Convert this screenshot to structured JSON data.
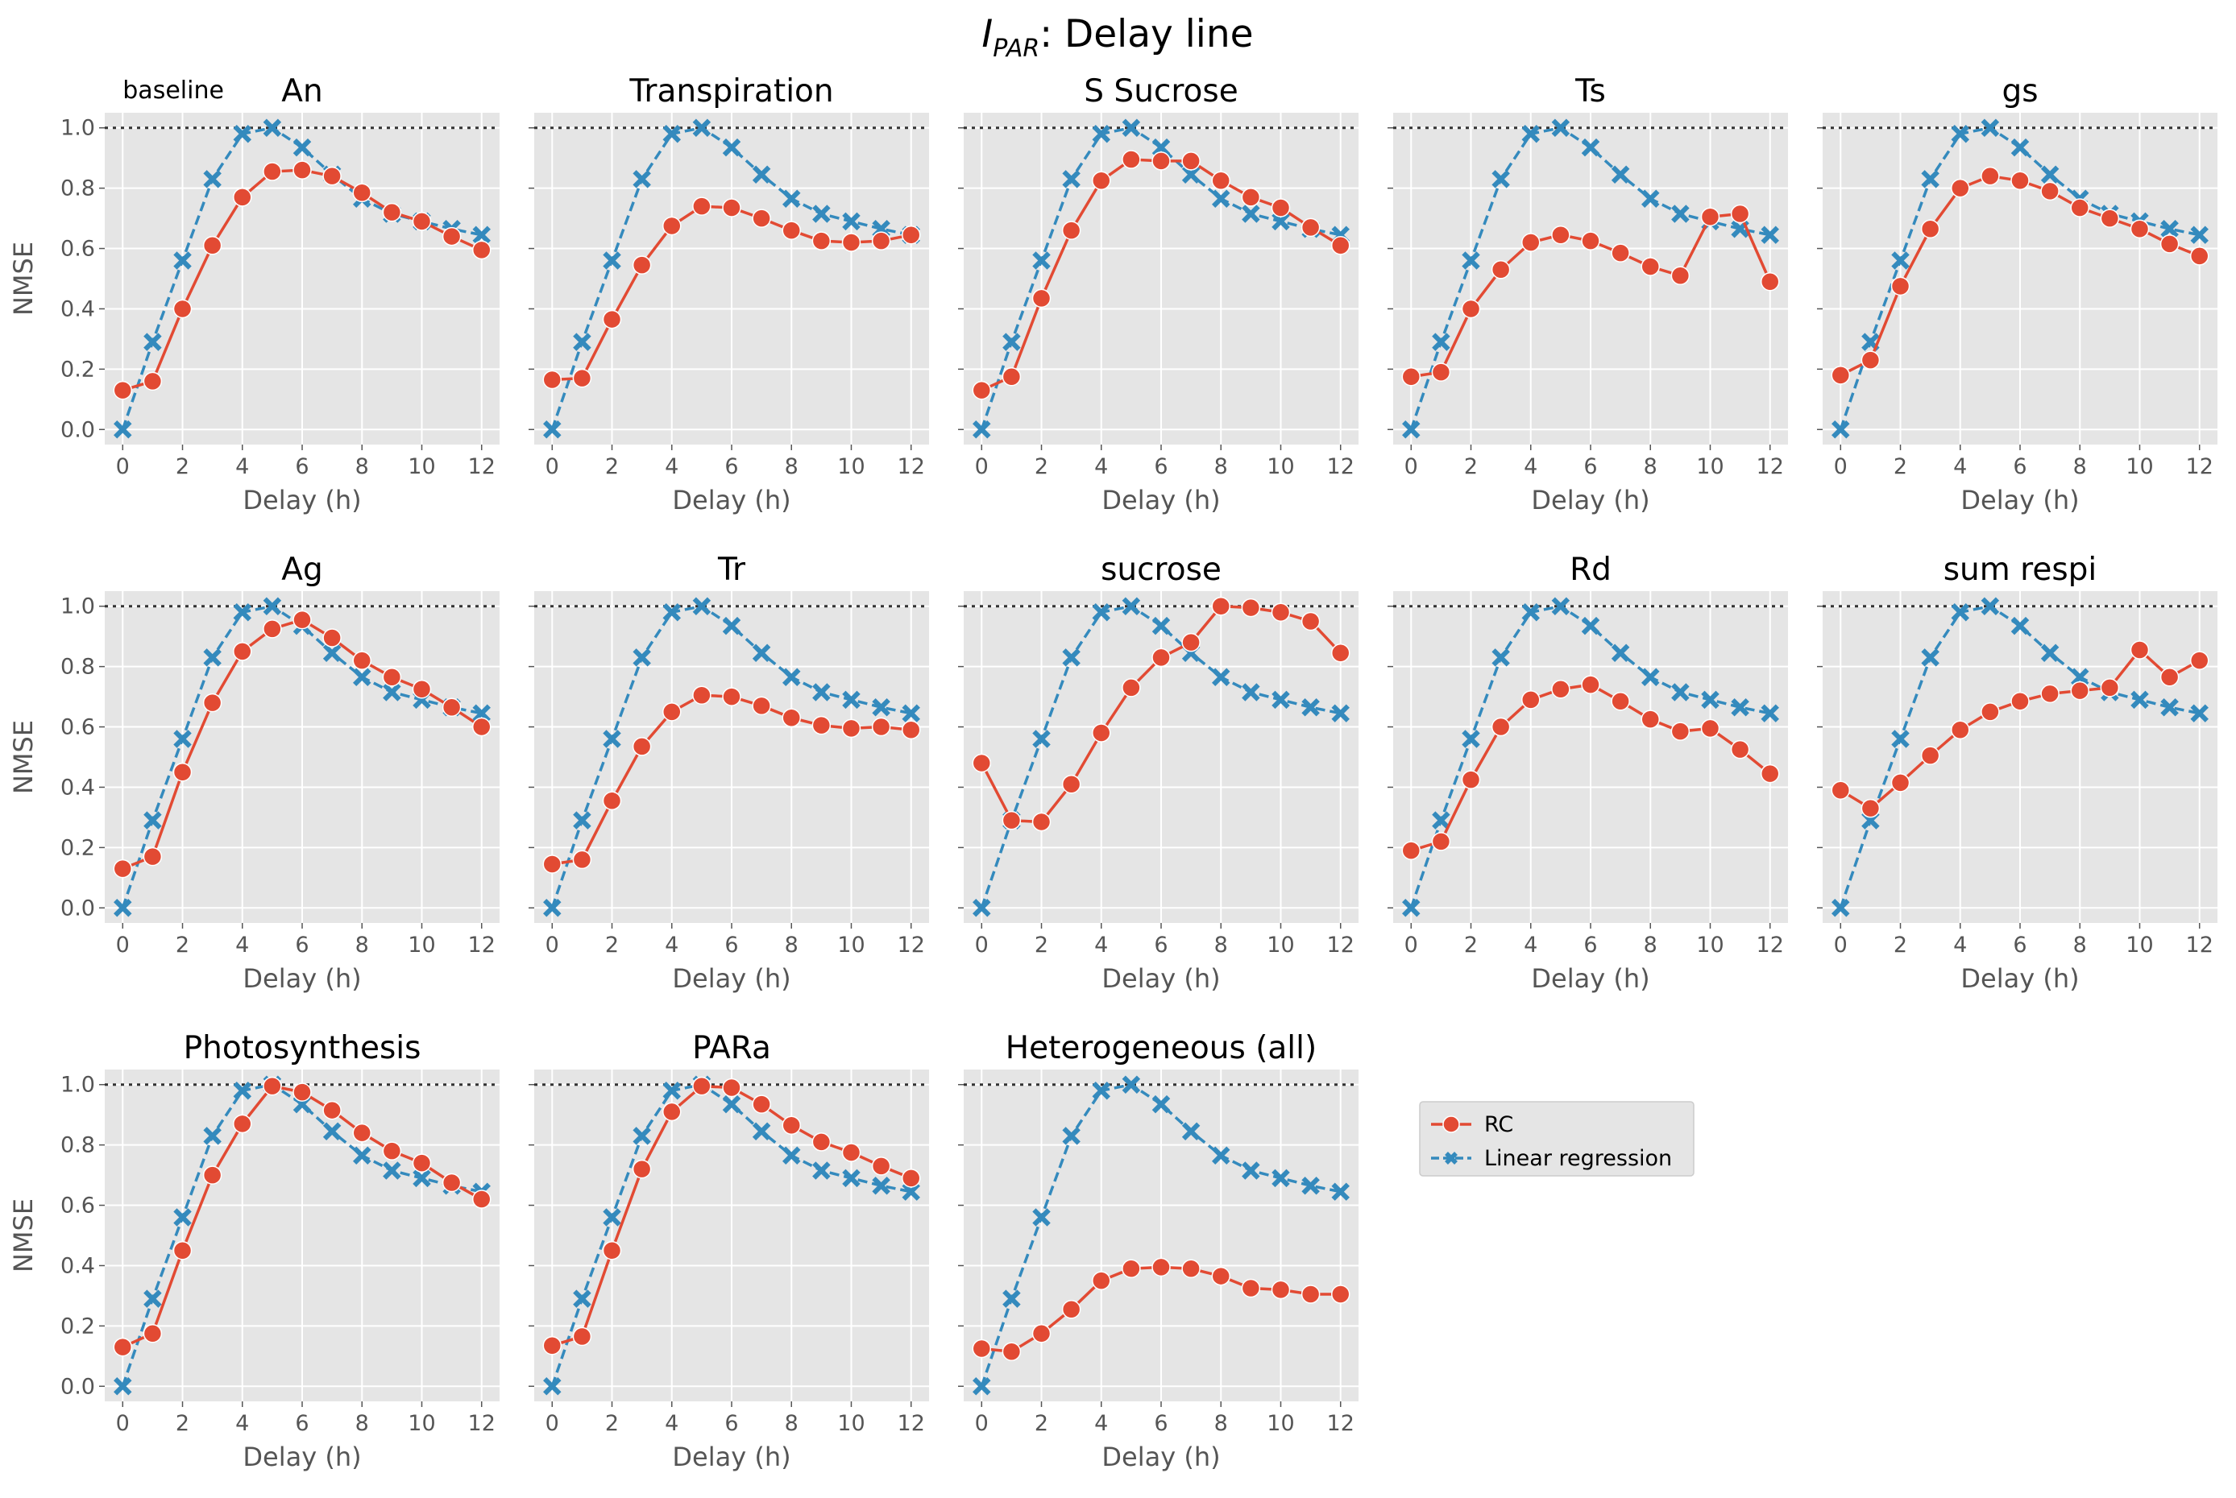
{
  "figure": {
    "title_main": "I",
    "title_sub": "PAR",
    "title_rest": ": Delay line"
  },
  "chart_data": {
    "type": "line",
    "xlabel": "Delay (h)",
    "ylabel": "NMSE",
    "x": [
      0,
      1,
      2,
      3,
      4,
      5,
      6,
      7,
      8,
      9,
      10,
      11,
      12
    ],
    "x_ticks": [
      0,
      2,
      4,
      6,
      8,
      10,
      12
    ],
    "y_ticks": [
      0.0,
      0.2,
      0.4,
      0.6,
      0.8,
      1.0
    ],
    "y_tick_labels": [
      "0.0",
      "0.2",
      "0.4",
      "0.6",
      "0.8",
      "1.0"
    ],
    "xlim": [
      -0.6,
      12.6
    ],
    "ylim": [
      -0.05,
      1.05
    ],
    "baseline_value": 1.0,
    "baseline_label": "baseline",
    "grid": true,
    "legend_position": "right of bottom row",
    "colors": {
      "rc": "#E24A33",
      "linear": "#348ABD",
      "panel_bg": "#E5E5E5",
      "grid": "#ffffff",
      "baseline": "#333333"
    },
    "legend": [
      {
        "key": "rc",
        "label": "RC"
      },
      {
        "key": "linear",
        "label": "Linear regression"
      }
    ],
    "linear_regression": [
      0.0,
      0.29,
      0.56,
      0.83,
      0.98,
      1.0,
      0.935,
      0.845,
      0.765,
      0.715,
      0.69,
      0.665,
      0.645
    ],
    "panels": [
      {
        "title": "An",
        "rc": [
          0.13,
          0.16,
          0.4,
          0.61,
          0.77,
          0.855,
          0.86,
          0.84,
          0.785,
          0.72,
          0.69,
          0.64,
          0.595
        ]
      },
      {
        "title": "Transpiration",
        "rc": [
          0.165,
          0.17,
          0.365,
          0.545,
          0.675,
          0.74,
          0.735,
          0.7,
          0.66,
          0.625,
          0.62,
          0.625,
          0.645
        ]
      },
      {
        "title": "S Sucrose",
        "rc": [
          0.13,
          0.175,
          0.435,
          0.66,
          0.825,
          0.895,
          0.89,
          0.89,
          0.825,
          0.77,
          0.735,
          0.67,
          0.61
        ]
      },
      {
        "title": "Ts",
        "rc": [
          0.175,
          0.19,
          0.4,
          0.53,
          0.62,
          0.645,
          0.625,
          0.585,
          0.54,
          0.51,
          0.705,
          0.715,
          0.49
        ]
      },
      {
        "title": "gs",
        "rc": [
          0.18,
          0.23,
          0.475,
          0.665,
          0.8,
          0.84,
          0.825,
          0.79,
          0.735,
          0.7,
          0.665,
          0.615,
          0.575
        ]
      },
      {
        "title": "Ag",
        "rc": [
          0.13,
          0.17,
          0.45,
          0.68,
          0.85,
          0.925,
          0.955,
          0.895,
          0.82,
          0.765,
          0.725,
          0.665,
          0.6
        ]
      },
      {
        "title": "Tr",
        "rc": [
          0.145,
          0.16,
          0.355,
          0.535,
          0.65,
          0.705,
          0.7,
          0.67,
          0.63,
          0.605,
          0.595,
          0.6,
          0.59
        ]
      },
      {
        "title": "sucrose",
        "rc": [
          0.48,
          0.29,
          0.285,
          0.41,
          0.58,
          0.73,
          0.83,
          0.88,
          1.0,
          0.995,
          0.98,
          0.95,
          0.845
        ]
      },
      {
        "title": "Rd",
        "rc": [
          0.19,
          0.22,
          0.425,
          0.6,
          0.69,
          0.725,
          0.74,
          0.685,
          0.625,
          0.585,
          0.595,
          0.525,
          0.445
        ]
      },
      {
        "title": "sum respi",
        "rc": [
          0.39,
          0.33,
          0.415,
          0.505,
          0.59,
          0.65,
          0.685,
          0.71,
          0.72,
          0.73,
          0.855,
          0.765,
          0.82
        ]
      },
      {
        "title": "Photosynthesis",
        "rc": [
          0.13,
          0.175,
          0.45,
          0.7,
          0.87,
          0.995,
          0.975,
          0.915,
          0.84,
          0.78,
          0.74,
          0.675,
          0.62
        ]
      },
      {
        "title": "PARa",
        "rc": [
          0.135,
          0.165,
          0.45,
          0.72,
          0.91,
          0.995,
          0.99,
          0.935,
          0.865,
          0.81,
          0.775,
          0.73,
          0.69
        ]
      },
      {
        "title": "Heterogeneous (all)",
        "rc": [
          0.125,
          0.115,
          0.175,
          0.255,
          0.35,
          0.39,
          0.395,
          0.39,
          0.365,
          0.325,
          0.32,
          0.305,
          0.305
        ]
      }
    ]
  }
}
